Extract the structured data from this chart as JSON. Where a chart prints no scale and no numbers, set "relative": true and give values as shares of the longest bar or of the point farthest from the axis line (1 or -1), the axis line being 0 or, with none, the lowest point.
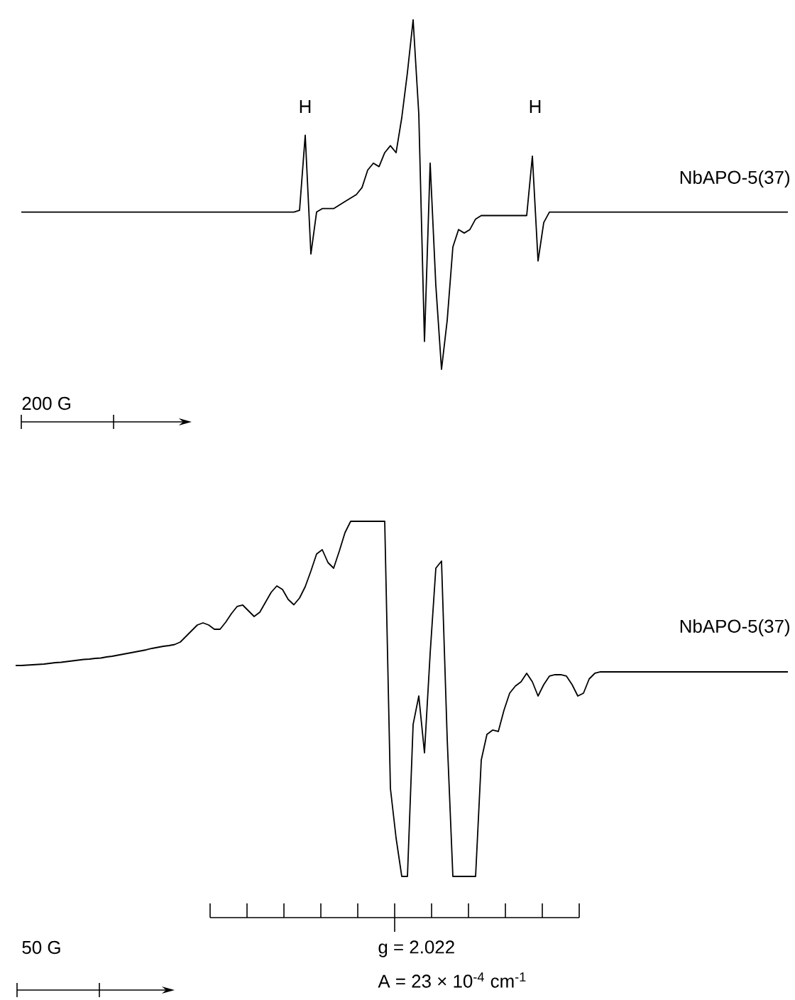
{
  "chart_data": [
    {
      "type": "line",
      "relative": true,
      "annotations": [
        "H",
        "H",
        "200 G"
      ],
      "categories": [
        null,
        null,
        null,
        null,
        null,
        null,
        null,
        null,
        null,
        null,
        null,
        null,
        null,
        null,
        null,
        null,
        null,
        null,
        null,
        null,
        null,
        null,
        null,
        null,
        null,
        null,
        null,
        null,
        null,
        null,
        null,
        null,
        null,
        null,
        null,
        null,
        null,
        null,
        null,
        null,
        null,
        null,
        null,
        null,
        null,
        null,
        null,
        null,
        null,
        null,
        null,
        null,
        null,
        null,
        null,
        null,
        null,
        null,
        null,
        null,
        null,
        null,
        null,
        null,
        null,
        null,
        null,
        null,
        null,
        null,
        null,
        null,
        null,
        null,
        null,
        null,
        null,
        null,
        null,
        null,
        null,
        null,
        null,
        null,
        null,
        null,
        null,
        null,
        null,
        null,
        null,
        null,
        null,
        null,
        null,
        null,
        null,
        null,
        null,
        null,
        null,
        null,
        null,
        null,
        null,
        null,
        null,
        null,
        null,
        null,
        null,
        null,
        null,
        null,
        null,
        null,
        null,
        null,
        null,
        null,
        null,
        null,
        null,
        null,
        null,
        null,
        null,
        null,
        null,
        null,
        null,
        null,
        null,
        null,
        null,
        null
      ],
      "series": [
        {
          "name": "NbAPO-5(37)",
          "color": "#000000",
          "values": [
            0.45,
            0.45,
            0.45,
            0.45,
            0.45,
            0.45,
            0.45,
            0.45,
            0.45,
            0.45,
            0.45,
            0.45,
            0.45,
            0.45,
            0.45,
            0.45,
            0.45,
            0.45,
            0.45,
            0.45,
            0.45,
            0.45,
            0.45,
            0.45,
            0.45,
            0.45,
            0.45,
            0.45,
            0.45,
            0.45,
            0.45,
            0.45,
            0.45,
            0.45,
            0.45,
            0.45,
            0.45,
            0.45,
            0.45,
            0.45,
            0.45,
            0.45,
            0.45,
            0.45,
            0.45,
            0.45,
            0.45,
            0.45,
            0.45,
            0.455,
            0.67,
            0.33,
            0.45,
            0.46,
            0.46,
            0.46,
            0.47,
            0.48,
            0.49,
            0.5,
            0.52,
            0.57,
            0.59,
            0.58,
            0.62,
            0.64,
            0.62,
            0.72,
            0.85,
            1,
            0.73,
            0.08,
            0.59,
            0.24,
            0,
            0.14,
            0.35,
            0.4,
            0.39,
            0.4,
            0.43,
            0.44,
            0.44,
            0.44,
            0.44,
            0.44,
            0.44,
            0.44,
            0.44,
            0.44,
            0.61,
            0.31,
            0.42,
            0.45,
            0.45,
            0.45,
            0.45,
            0.45,
            0.45,
            0.45,
            0.45,
            0.45,
            0.45,
            0.45,
            0.45,
            0.45,
            0.45,
            0.45,
            0.45,
            0.45,
            0.45,
            0.45,
            0.45,
            0.45,
            0.45,
            0.45,
            0.45,
            0.45,
            0.45,
            0.45,
            0.45,
            0.45,
            0.45,
            0.45,
            0.45,
            0.45,
            0.45,
            0.45,
            0.45,
            0.45,
            0.45,
            0.45,
            0.45,
            0.45,
            0.45,
            0.45
          ]
        }
      ]
    },
    {
      "type": "line",
      "relative": true,
      "annotations": [
        "g = 2.022",
        "A = 23 × 10$^{-4}$ cm$^{-1}$",
        "50 G"
      ],
      "categories": [
        null,
        null,
        null,
        null,
        null,
        null,
        null,
        null,
        null,
        null,
        null,
        null,
        null,
        null,
        null,
        null,
        null,
        null,
        null,
        null,
        null,
        null,
        null,
        null,
        null,
        null,
        null,
        null,
        null,
        null,
        null,
        null,
        null,
        null,
        null,
        null,
        null,
        null,
        null,
        null,
        null,
        null,
        null,
        null,
        null,
        null,
        null,
        null,
        null,
        null,
        null,
        null,
        null,
        null,
        null,
        null,
        null,
        null,
        null,
        null,
        null,
        null,
        null,
        null,
        null,
        null,
        null,
        null,
        null,
        null,
        null,
        null,
        null,
        null,
        null,
        null,
        null,
        null,
        null,
        null,
        null,
        null,
        null,
        null,
        null,
        null,
        null,
        null,
        null,
        null,
        null,
        null,
        null,
        null,
        null,
        null,
        null,
        null,
        null,
        null,
        null,
        null,
        null,
        null,
        null,
        null,
        null,
        null,
        null,
        null,
        null,
        null,
        null,
        null,
        null,
        null,
        null,
        null,
        null,
        null,
        null,
        null,
        null,
        null,
        null,
        null,
        null,
        null,
        null,
        null,
        null,
        null,
        null,
        null,
        null,
        null,
        null
      ],
      "series": [
        {
          "name": "NbAPO-5(37)",
          "color": "#000000",
          "values": [
            0.594,
            0.594,
            0.595,
            0.596,
            0.597,
            0.598,
            0.6,
            0.602,
            0.603,
            0.605,
            0.607,
            0.609,
            0.611,
            0.612,
            0.614,
            0.615,
            0.618,
            0.62,
            0.623,
            0.626,
            0.629,
            0.632,
            0.635,
            0.638,
            0.642,
            0.645,
            0.648,
            0.65,
            0.653,
            0.66,
            0.676,
            0.692,
            0.708,
            0.714,
            0.708,
            0.696,
            0.696,
            0.716,
            0.74,
            0.76,
            0.764,
            0.748,
            0.732,
            0.744,
            0.772,
            0.8,
            0.818,
            0.808,
            0.78,
            0.765,
            0.784,
            0.816,
            0.86,
            0.908,
            0.92,
            0.884,
            0.868,
            0.916,
            0.968,
            1,
            1,
            1,
            1,
            1,
            1,
            1,
            0.248,
            0.108,
            0,
            0,
            0.428,
            0.508,
            0.348,
            0.628,
            0.868,
            0.888,
            0.388,
            0,
            0,
            0,
            0,
            0,
            0.328,
            0.4,
            0.412,
            0.408,
            0.468,
            0.516,
            0.536,
            0.548,
            0.572,
            0.548,
            0.508,
            0.54,
            0.564,
            0.568,
            0.568,
            0.564,
            0.54,
            0.508,
            0.516,
            0.556,
            0.572,
            0.576,
            0.576,
            0.576,
            0.576,
            0.576,
            0.576,
            0.576,
            0.576,
            0.576,
            0.576,
            0.576,
            0.576,
            0.576,
            0.576,
            0.576,
            0.576,
            0.576,
            0.576,
            0.576,
            0.576,
            0.576,
            0.576,
            0.576,
            0.576,
            0.576,
            0.576,
            0.576,
            0.576,
            0.576,
            0.576,
            0.576,
            0.576,
            0.576,
            0.576
          ]
        }
      ]
    }
  ]
}
